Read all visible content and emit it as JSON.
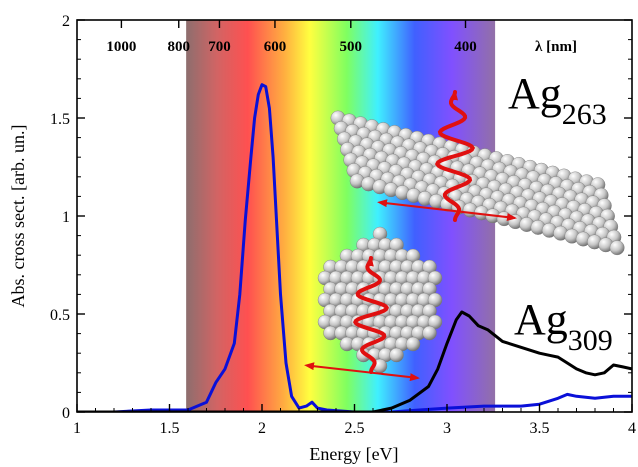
{
  "chart_data": {
    "type": "line",
    "xlabel": "Energy [eV]",
    "ylabel": "Abs. cross sect. [arb. un.]",
    "xlim": [
      1,
      4
    ],
    "ylim": [
      0,
      2
    ],
    "xticks": [
      1,
      1.5,
      2,
      2.5,
      3,
      3.5,
      4
    ],
    "xtick_labels": [
      "1",
      "1.5",
      "2",
      "2.5",
      "3",
      "3.5",
      "4"
    ],
    "yticks": [
      0,
      0.5,
      1,
      1.5,
      2
    ],
    "ytick_labels": [
      "0",
      "0.5",
      "1",
      "1.5",
      "2"
    ],
    "grid": false,
    "top_axis": {
      "label": "λ [nm]",
      "ticks": [
        {
          "label": "1000",
          "energy": 1.24
        },
        {
          "label": "800",
          "energy": 1.55
        },
        {
          "label": "700",
          "energy": 1.77
        },
        {
          "label": "600",
          "energy": 2.07
        },
        {
          "label": "500",
          "energy": 2.48
        },
        {
          "label": "400",
          "energy": 3.1
        }
      ]
    },
    "visible_band": {
      "from": 1.59,
      "to": 3.26
    },
    "series": [
      {
        "color": "#0a10d8",
        "x": [
          1.0,
          1.2,
          1.4,
          1.5,
          1.6,
          1.7,
          1.75,
          1.8,
          1.85,
          1.88,
          1.91,
          1.94,
          1.96,
          1.98,
          2.0,
          2.02,
          2.04,
          2.06,
          2.08,
          2.1,
          2.13,
          2.16,
          2.2,
          2.24,
          2.27,
          2.3,
          2.35,
          2.5,
          2.7,
          2.85,
          3.0,
          3.2,
          3.4,
          3.5,
          3.6,
          3.65,
          3.7,
          3.8,
          3.9,
          4.0
        ],
        "y": [
          0.0,
          0.0,
          0.01,
          0.01,
          0.01,
          0.05,
          0.15,
          0.22,
          0.35,
          0.6,
          0.98,
          1.3,
          1.5,
          1.62,
          1.67,
          1.66,
          1.55,
          1.3,
          0.95,
          0.6,
          0.25,
          0.08,
          0.02,
          0.03,
          0.05,
          0.02,
          0.01,
          0.0,
          0.0,
          0.01,
          0.02,
          0.03,
          0.03,
          0.04,
          0.07,
          0.09,
          0.08,
          0.07,
          0.08,
          0.08
        ]
      },
      {
        "label": "Ag309",
        "color": "#000000",
        "x": [
          1.0,
          1.5,
          2.0,
          2.4,
          2.6,
          2.7,
          2.8,
          2.9,
          2.95,
          3.0,
          3.05,
          3.08,
          3.12,
          3.17,
          3.22,
          3.3,
          3.4,
          3.5,
          3.55,
          3.6,
          3.65,
          3.7,
          3.75,
          3.8,
          3.85,
          3.9,
          3.95,
          4.0
        ],
        "y": [
          0.0,
          0.0,
          0.0,
          0.0,
          0.0,
          0.02,
          0.06,
          0.13,
          0.22,
          0.35,
          0.47,
          0.51,
          0.49,
          0.44,
          0.42,
          0.36,
          0.33,
          0.3,
          0.29,
          0.28,
          0.25,
          0.22,
          0.2,
          0.19,
          0.2,
          0.24,
          0.23,
          0.22
        ]
      }
    ],
    "annotations": [
      {
        "base": "Ag",
        "sub": "263"
      },
      {
        "base": "Ag",
        "sub": "309"
      }
    ]
  }
}
